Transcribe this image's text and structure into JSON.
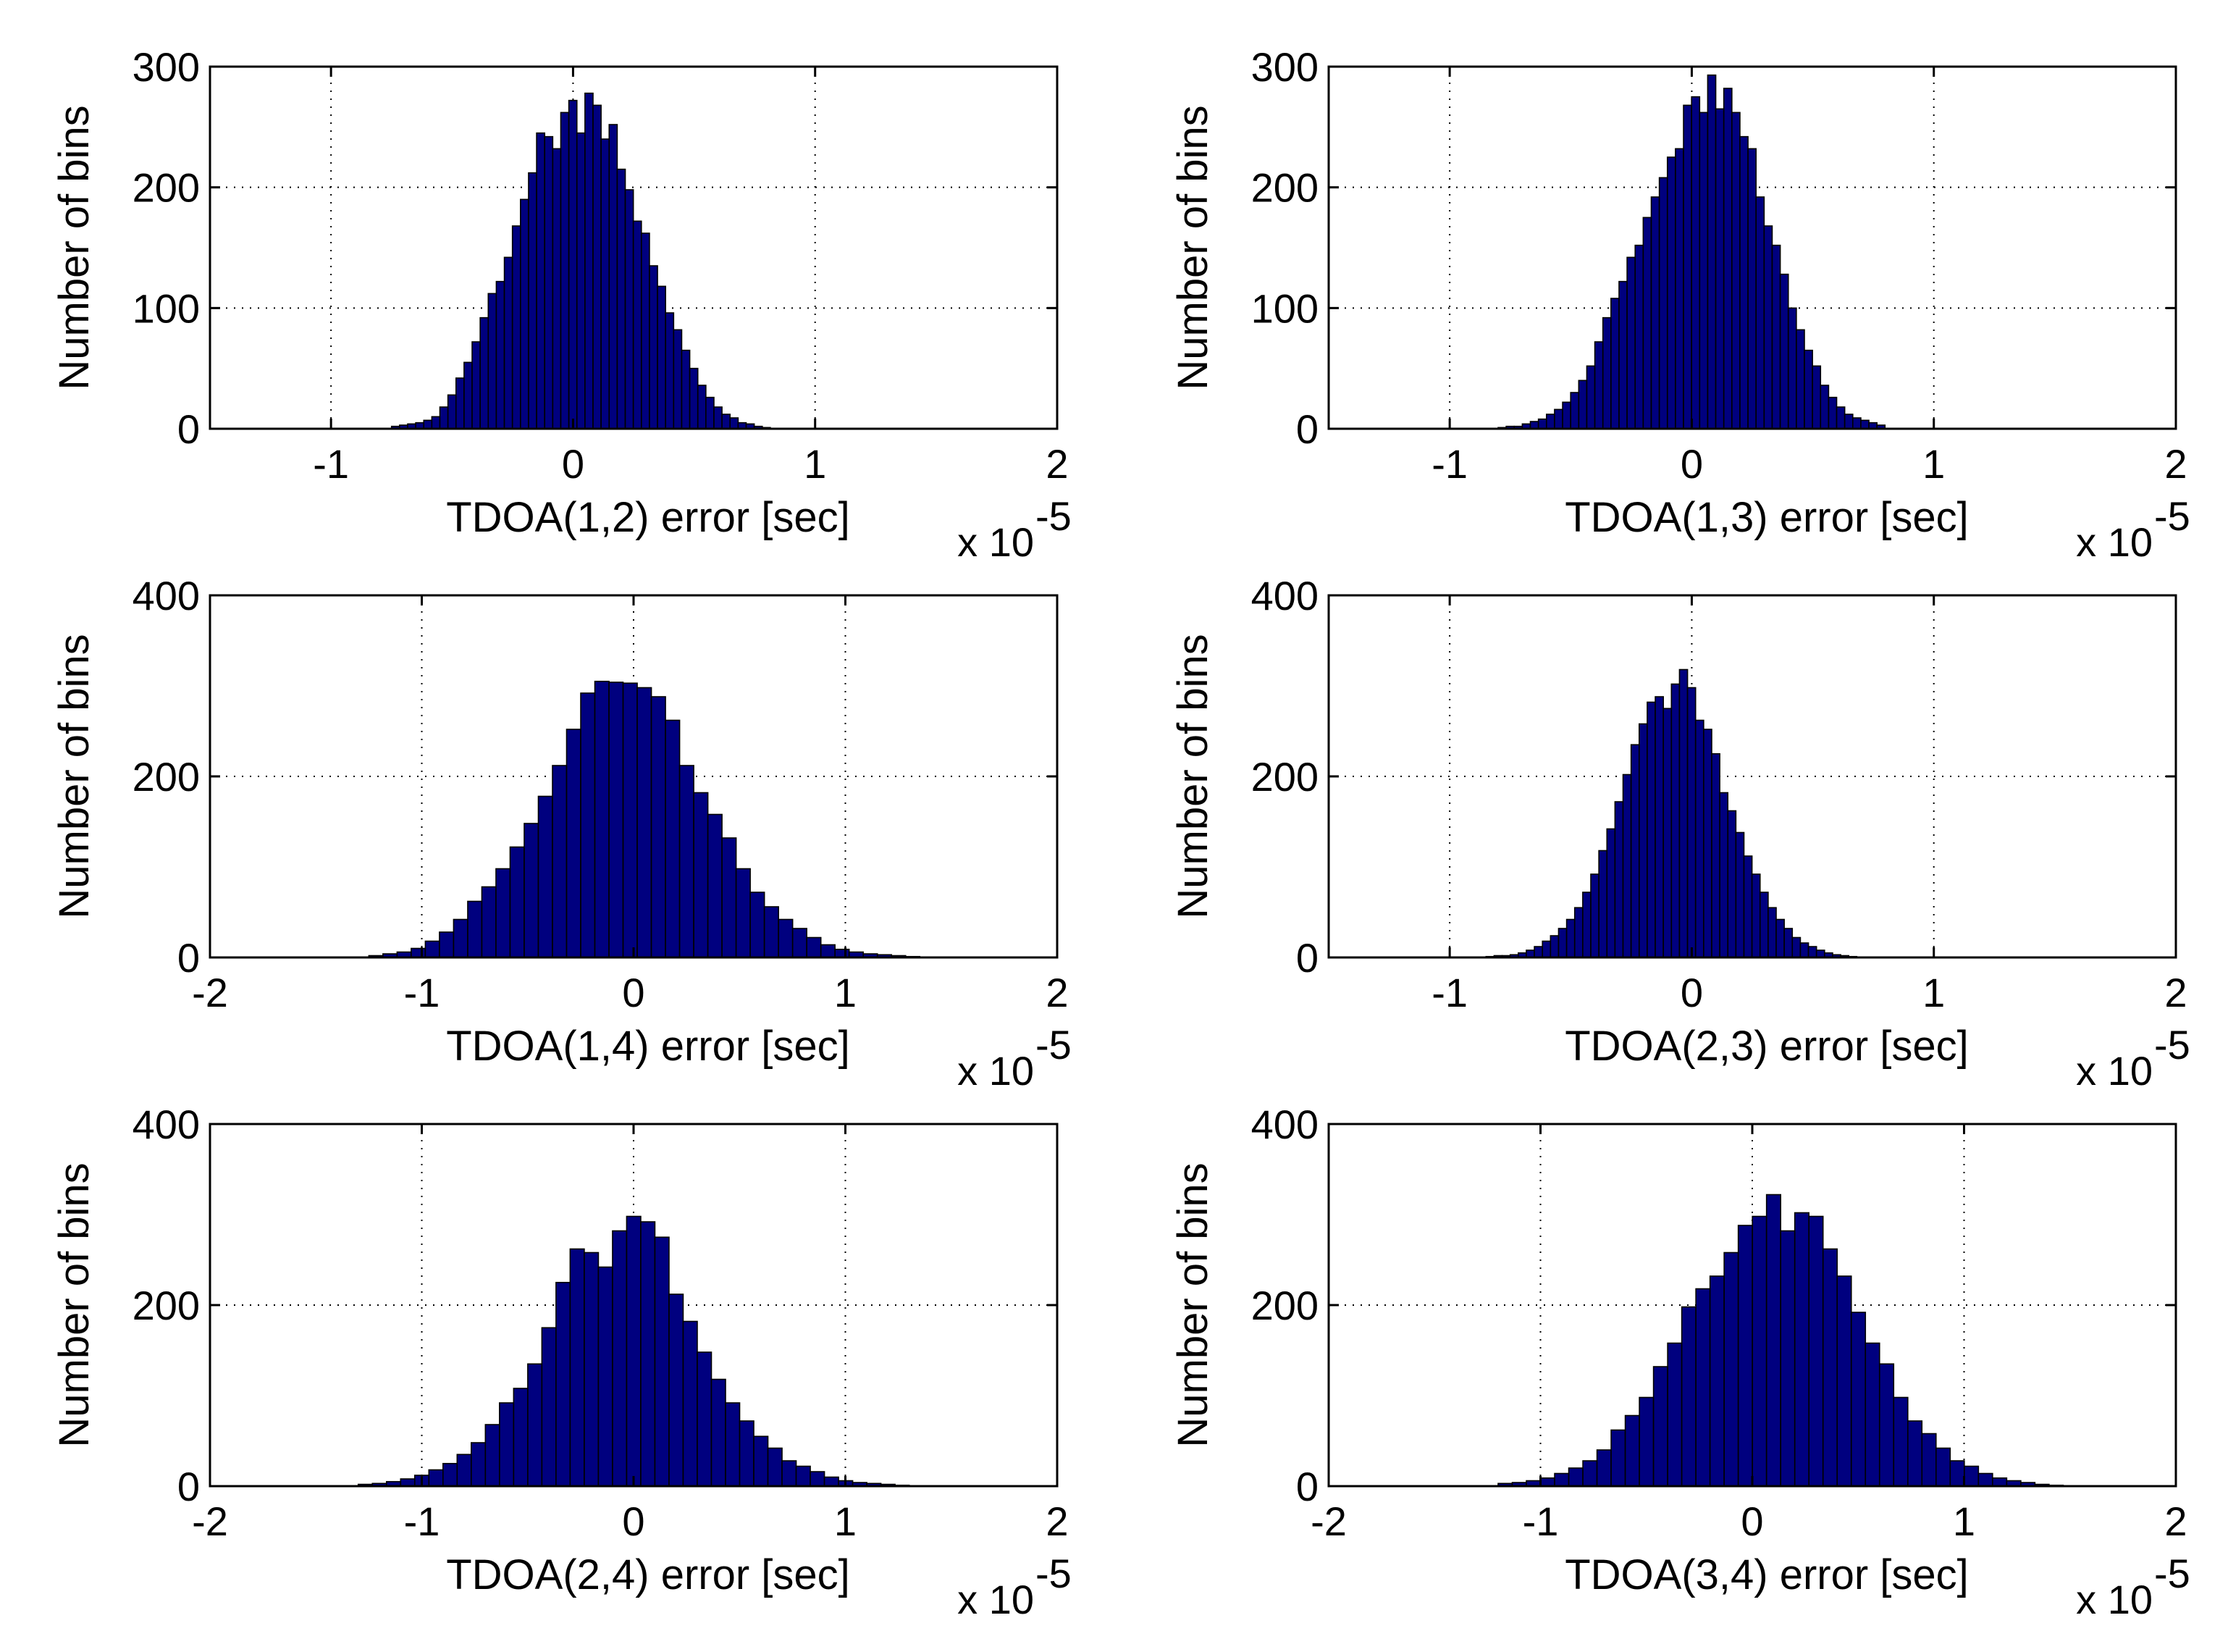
{
  "figure": {
    "background": "#ffffff",
    "bar_color": "#00007f",
    "bar_edge": "#000000"
  },
  "chart_data": [
    {
      "type": "bar",
      "title": "",
      "xlabel": "TDOA(1,2) error [sec]",
      "ylabel": "Number of bins",
      "x_multiplier": "x 10",
      "x_exponent": "-5",
      "xlim": [
        -1.5,
        2
      ],
      "ylim": [
        0,
        300
      ],
      "xticks": [
        -1,
        0,
        1,
        2
      ],
      "xtick_labels": [
        "-1",
        "0",
        "1",
        "2"
      ],
      "yticks": [
        0,
        100,
        200,
        300
      ],
      "ytick_labels": [
        "0",
        "100",
        "200",
        "300"
      ],
      "grid": true,
      "bin_start": -0.75,
      "bin_width": 0.0333,
      "values": [
        2,
        3,
        4,
        5,
        7,
        10,
        18,
        28,
        42,
        55,
        72,
        92,
        112,
        122,
        142,
        168,
        190,
        212,
        245,
        242,
        232,
        262,
        272,
        245,
        278,
        268,
        240,
        252,
        215,
        198,
        172,
        162,
        135,
        118,
        96,
        82,
        65,
        50,
        36,
        26,
        18,
        12,
        9,
        5,
        4,
        2,
        1
      ]
    },
    {
      "type": "bar",
      "title": "",
      "xlabel": "TDOA(1,3) error [sec]",
      "ylabel": "Number of bins",
      "x_multiplier": "x 10",
      "x_exponent": "-5",
      "xlim": [
        -1.5,
        2
      ],
      "ylim": [
        0,
        300
      ],
      "xticks": [
        -1,
        0,
        1,
        2
      ],
      "xtick_labels": [
        "-1",
        "0",
        "1",
        "2"
      ],
      "yticks": [
        0,
        100,
        200,
        300
      ],
      "ytick_labels": [
        "0",
        "100",
        "200",
        "300"
      ],
      "grid": true,
      "bin_start": -0.8,
      "bin_width": 0.0333,
      "values": [
        1,
        2,
        2,
        4,
        6,
        8,
        12,
        16,
        22,
        30,
        40,
        52,
        72,
        92,
        108,
        122,
        142,
        152,
        175,
        192,
        208,
        225,
        232,
        268,
        275,
        262,
        293,
        265,
        282,
        262,
        242,
        232,
        192,
        168,
        152,
        128,
        100,
        82,
        65,
        52,
        36,
        26,
        18,
        12,
        9,
        7,
        5,
        3
      ]
    },
    {
      "type": "bar",
      "title": "",
      "xlabel": "TDOA(1,4) error [sec]",
      "ylabel": "Number of bins",
      "x_multiplier": "x 10",
      "x_exponent": "-5",
      "xlim": [
        -2,
        2
      ],
      "ylim": [
        0,
        400
      ],
      "xticks": [
        -2,
        -1,
        0,
        1,
        2
      ],
      "xtick_labels": [
        "-2",
        "-1",
        "0",
        "1",
        "2"
      ],
      "yticks": [
        0,
        200,
        400
      ],
      "ytick_labels": [
        "0",
        "200",
        "400"
      ],
      "grid": true,
      "bin_start": -1.25,
      "bin_width": 0.0667,
      "values": [
        2,
        4,
        6,
        10,
        18,
        28,
        42,
        62,
        78,
        98,
        122,
        148,
        178,
        212,
        252,
        292,
        305,
        304,
        303,
        298,
        288,
        262,
        212,
        182,
        158,
        132,
        98,
        72,
        56,
        42,
        32,
        22,
        14,
        9,
        6,
        4,
        3,
        2,
        1
      ]
    },
    {
      "type": "bar",
      "title": "",
      "xlabel": "TDOA(2,3) error [sec]",
      "ylabel": "Number of bins",
      "x_multiplier": "x 10",
      "x_exponent": "-5",
      "xlim": [
        -1.5,
        2
      ],
      "ylim": [
        0,
        400
      ],
      "xticks": [
        -1,
        0,
        1,
        2
      ],
      "xtick_labels": [
        "-1",
        "0",
        "1",
        "2"
      ],
      "yticks": [
        0,
        200,
        400
      ],
      "ytick_labels": [
        "0",
        "200",
        "400"
      ],
      "grid": true,
      "bin_start": -0.85,
      "bin_width": 0.0333,
      "values": [
        1,
        2,
        2,
        3,
        5,
        8,
        12,
        18,
        24,
        32,
        42,
        55,
        72,
        92,
        118,
        142,
        172,
        202,
        235,
        258,
        282,
        288,
        275,
        302,
        318,
        298,
        262,
        252,
        225,
        182,
        162,
        138,
        112,
        92,
        72,
        55,
        42,
        32,
        22,
        16,
        12,
        8,
        5,
        3,
        2,
        1
      ]
    },
    {
      "type": "bar",
      "title": "",
      "xlabel": "TDOA(2,4) error [sec]",
      "ylabel": "Number of bins",
      "x_multiplier": "x 10",
      "x_exponent": "-5",
      "xlim": [
        -2,
        2
      ],
      "ylim": [
        0,
        400
      ],
      "xticks": [
        -2,
        -1,
        0,
        1,
        2
      ],
      "xtick_labels": [
        "-2",
        "-1",
        "0",
        "1",
        "2"
      ],
      "yticks": [
        0,
        200,
        400
      ],
      "ytick_labels": [
        "0",
        "200",
        "400"
      ],
      "grid": true,
      "bin_start": -1.3,
      "bin_width": 0.0667,
      "values": [
        2,
        3,
        5,
        8,
        12,
        18,
        25,
        35,
        48,
        68,
        92,
        108,
        135,
        175,
        225,
        262,
        258,
        242,
        282,
        298,
        292,
        275,
        212,
        182,
        148,
        118,
        92,
        72,
        55,
        42,
        28,
        22,
        16,
        10,
        6,
        4,
        3,
        2,
        1
      ]
    },
    {
      "type": "bar",
      "title": "",
      "xlabel": "TDOA(3,4) error [sec]",
      "ylabel": "Number of bins",
      "x_multiplier": "x 10",
      "x_exponent": "-5",
      "xlim": [
        -2,
        2
      ],
      "ylim": [
        0,
        400
      ],
      "xticks": [
        -2,
        -1,
        0,
        1,
        2
      ],
      "xtick_labels": [
        "-2",
        "-1",
        "0",
        "1",
        "2"
      ],
      "yticks": [
        0,
        200,
        400
      ],
      "ytick_labels": [
        "0",
        "200",
        "400"
      ],
      "grid": true,
      "bin_start": -1.2,
      "bin_width": 0.0667,
      "values": [
        3,
        4,
        6,
        9,
        14,
        20,
        28,
        40,
        62,
        78,
        98,
        132,
        158,
        198,
        218,
        232,
        258,
        288,
        298,
        322,
        282,
        302,
        298,
        262,
        232,
        192,
        158,
        135,
        98,
        72,
        58,
        42,
        28,
        22,
        14,
        9,
        6,
        4,
        2,
        1
      ]
    }
  ]
}
